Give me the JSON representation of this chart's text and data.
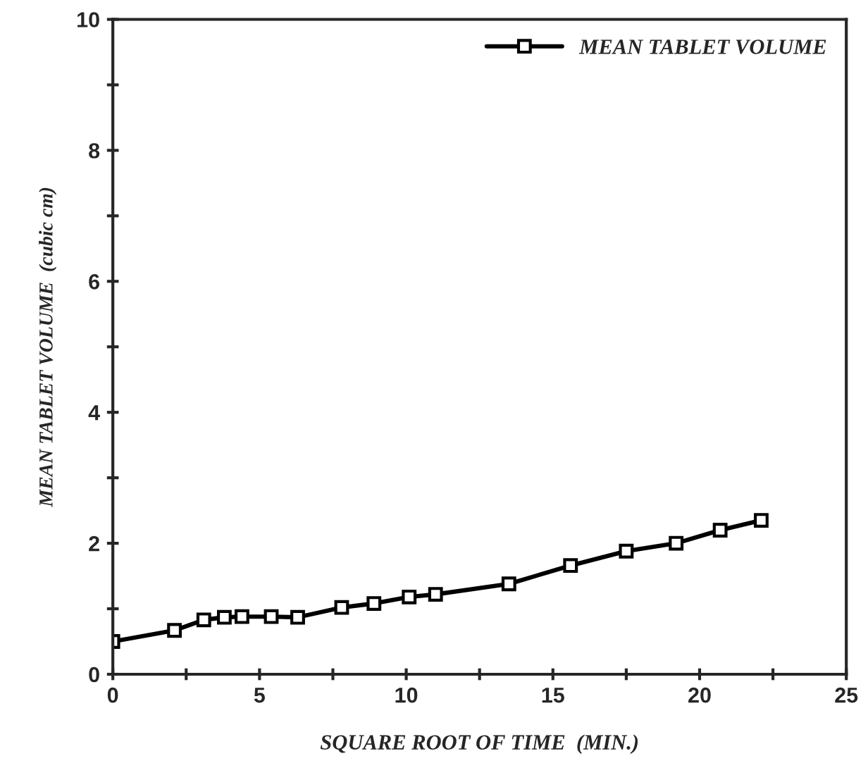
{
  "chart_data": {
    "type": "line",
    "xlabel": "SQUARE ROOT OF TIME  (MIN.)",
    "ylabel": "MEAN TABLET VOLUME  (cubic cm)",
    "x": [
      0,
      2.1,
      3.1,
      3.8,
      4.4,
      5.4,
      6.3,
      7.8,
      8.9,
      10.1,
      11.0,
      13.5,
      15.6,
      17.5,
      19.2,
      20.7,
      22.1
    ],
    "series": [
      {
        "name": "MEAN TABLET VOLUME",
        "color": "#000000",
        "values": [
          0.5,
          0.67,
          0.83,
          0.87,
          0.88,
          0.88,
          0.87,
          1.02,
          1.08,
          1.18,
          1.22,
          1.38,
          1.66,
          1.88,
          2.0,
          2.2,
          2.35
        ]
      }
    ],
    "xlim": [
      0,
      25
    ],
    "ylim": [
      0,
      10
    ],
    "xticks": [
      0,
      {
        "value": 2.5,
        "label": null
      },
      5,
      {
        "value": 7.5,
        "label": null
      },
      10,
      {
        "value": 12.5,
        "label": null
      },
      15,
      {
        "value": 17.5,
        "label": null
      },
      20,
      {
        "value": 22.5,
        "label": null
      },
      25
    ],
    "yticks": [
      0,
      {
        "value": 1,
        "label": null
      },
      2,
      {
        "value": 3,
        "label": null
      },
      4,
      {
        "value": 5,
        "label": null
      },
      6,
      {
        "value": 7,
        "label": null
      },
      8,
      {
        "value": 9,
        "label": null
      },
      10
    ],
    "marker": "square",
    "line_style": "solid",
    "legend": "top right",
    "grid": false
  }
}
